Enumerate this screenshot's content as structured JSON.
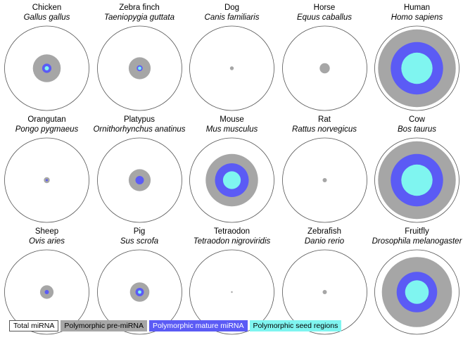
{
  "chart_data": {
    "type": "nested-circle-area",
    "encoding": "Concentric circles per species; relative radius of each filled circle to the outer circle (Total miRNA)",
    "colors": {
      "total": "#ffffff",
      "total_stroke": "#555555",
      "pre": "#a6a6a6",
      "mature": "#5b5bf5",
      "seed": "#7ff5f0"
    },
    "legend": [
      {
        "key": "total",
        "label": "Total miRNA"
      },
      {
        "key": "pre",
        "label": "Polymorphic pre-miRNA"
      },
      {
        "key": "mature",
        "label": "Polymorphic mature miRNA"
      },
      {
        "key": "seed",
        "label": "Polymorphic seed regions"
      }
    ],
    "species": [
      {
        "common": "Chicken",
        "scientific": "Gallus gallus",
        "total": 1.0,
        "pre": 0.33,
        "mature": 0.11,
        "seed": 0.05
      },
      {
        "common": "Zebra finch",
        "scientific": "Taeniopygia guttata",
        "total": 1.0,
        "pre": 0.26,
        "mature": 0.07,
        "seed": 0.04
      },
      {
        "common": "Dog",
        "scientific": "Canis familiaris",
        "total": 1.0,
        "pre": 0.045,
        "mature": 0,
        "seed": 0
      },
      {
        "common": "Horse",
        "scientific": "Equus caballus",
        "total": 1.0,
        "pre": 0.12,
        "mature": 0,
        "seed": 0
      },
      {
        "common": "Human",
        "scientific": "Homo sapiens",
        "total": 1.0,
        "pre": 0.92,
        "mature": 0.62,
        "seed": 0.37
      },
      {
        "common": "Orangutan",
        "scientific": "Pongo pygmaeus",
        "total": 1.0,
        "pre": 0.07,
        "mature": 0.025,
        "seed": 0
      },
      {
        "common": "Platypus",
        "scientific": "Ornithorhynchus anatinus",
        "total": 1.0,
        "pre": 0.26,
        "mature": 0.1,
        "seed": 0
      },
      {
        "common": "Mouse",
        "scientific": "Mus musculus",
        "total": 1.0,
        "pre": 0.62,
        "mature": 0.4,
        "seed": 0.21
      },
      {
        "common": "Rat",
        "scientific": "Rattus norvegicus",
        "total": 1.0,
        "pre": 0.05,
        "mature": 0,
        "seed": 0
      },
      {
        "common": "Cow",
        "scientific": "Bos taurus",
        "total": 1.0,
        "pre": 0.92,
        "mature": 0.62,
        "seed": 0.37
      },
      {
        "common": "Sheep",
        "scientific": "Ovis aries",
        "total": 1.0,
        "pre": 0.16,
        "mature": 0.05,
        "seed": 0
      },
      {
        "common": "Pig",
        "scientific": "Sus scrofa",
        "total": 1.0,
        "pre": 0.23,
        "mature": 0.1,
        "seed": 0.04
      },
      {
        "common": "Tetraodon",
        "scientific": "Tetraodon nigroviridis",
        "total": 1.0,
        "pre": 0.02,
        "mature": 0,
        "seed": 0
      },
      {
        "common": "Zebrafish",
        "scientific": "Danio rerio",
        "total": 1.0,
        "pre": 0.05,
        "mature": 0,
        "seed": 0
      },
      {
        "common": "Fruitfly",
        "scientific": "Drosophila melanogaster",
        "total": 1.0,
        "pre": 0.83,
        "mature": 0.48,
        "seed": 0.28
      }
    ]
  }
}
